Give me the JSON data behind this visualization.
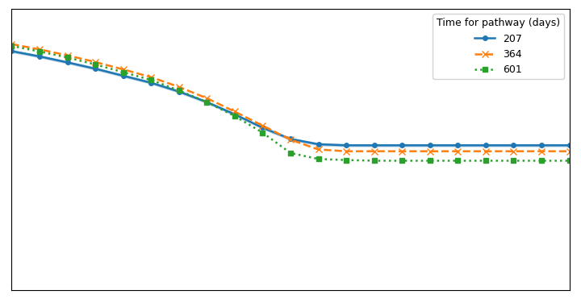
{
  "title": "",
  "legend_title": "Time for pathway (days)",
  "series": [
    {
      "label": "207",
      "color": "#1f77b4",
      "linestyle": "-",
      "marker": "o",
      "markersize": 4,
      "linewidth": 1.8,
      "x": [
        0.0,
        0.05,
        0.1,
        0.15,
        0.2,
        0.25,
        0.3,
        0.35,
        0.4,
        0.45,
        0.5,
        0.55,
        0.6,
        0.65,
        0.7,
        0.75,
        0.8,
        0.85,
        0.9,
        0.95,
        1.0
      ],
      "y": [
        0.78,
        0.765,
        0.748,
        0.73,
        0.71,
        0.69,
        0.665,
        0.635,
        0.6,
        0.562,
        0.53,
        0.515,
        0.512,
        0.512,
        0.512,
        0.512,
        0.512,
        0.512,
        0.512,
        0.512,
        0.512
      ],
      "y_lower": [
        0.777,
        0.762,
        0.745,
        0.727,
        0.707,
        0.687,
        0.662,
        0.632,
        0.597,
        0.559,
        0.527,
        0.512,
        0.509,
        0.509,
        0.509,
        0.509,
        0.509,
        0.509,
        0.509,
        0.509,
        0.509
      ],
      "y_upper": [
        0.783,
        0.768,
        0.751,
        0.733,
        0.713,
        0.693,
        0.668,
        0.638,
        0.603,
        0.565,
        0.533,
        0.518,
        0.515,
        0.515,
        0.515,
        0.515,
        0.515,
        0.515,
        0.515,
        0.515,
        0.515
      ],
      "fill_alpha": 0.25
    },
    {
      "label": "364",
      "color": "#ff7f0e",
      "linestyle": "--",
      "marker": "x",
      "markersize": 6,
      "linewidth": 1.8,
      "x": [
        0.0,
        0.05,
        0.1,
        0.15,
        0.2,
        0.25,
        0.3,
        0.35,
        0.4,
        0.45,
        0.5,
        0.55,
        0.6,
        0.65,
        0.7,
        0.75,
        0.8,
        0.85,
        0.9,
        0.95,
        1.0
      ],
      "y": [
        0.8,
        0.785,
        0.768,
        0.749,
        0.728,
        0.706,
        0.678,
        0.646,
        0.608,
        0.568,
        0.528,
        0.5,
        0.495,
        0.495,
        0.495,
        0.495,
        0.495,
        0.495,
        0.495,
        0.495,
        0.495
      ],
      "y_lower": null,
      "y_upper": null,
      "fill_alpha": 0
    },
    {
      "label": "601",
      "color": "#2ca02c",
      "linestyle": ":",
      "marker": "s",
      "markersize": 4,
      "linewidth": 1.8,
      "x": [
        0.0,
        0.05,
        0.1,
        0.15,
        0.2,
        0.25,
        0.3,
        0.35,
        0.4,
        0.45,
        0.5,
        0.55,
        0.6,
        0.65,
        0.7,
        0.75,
        0.8,
        0.85,
        0.9,
        0.95,
        1.0
      ],
      "y": [
        0.795,
        0.779,
        0.762,
        0.742,
        0.72,
        0.698,
        0.668,
        0.635,
        0.595,
        0.548,
        0.49,
        0.473,
        0.47,
        0.468,
        0.468,
        0.468,
        0.468,
        0.468,
        0.468,
        0.468,
        0.468
      ],
      "y_lower": null,
      "y_upper": null,
      "fill_alpha": 0
    }
  ],
  "xlim": [
    0.0,
    1.0
  ],
  "ylim": [
    0.1,
    0.9
  ],
  "background_color": "#ffffff",
  "legend_loc": "upper right",
  "legend_fontsize": 9,
  "legend_title_fontsize": 9
}
